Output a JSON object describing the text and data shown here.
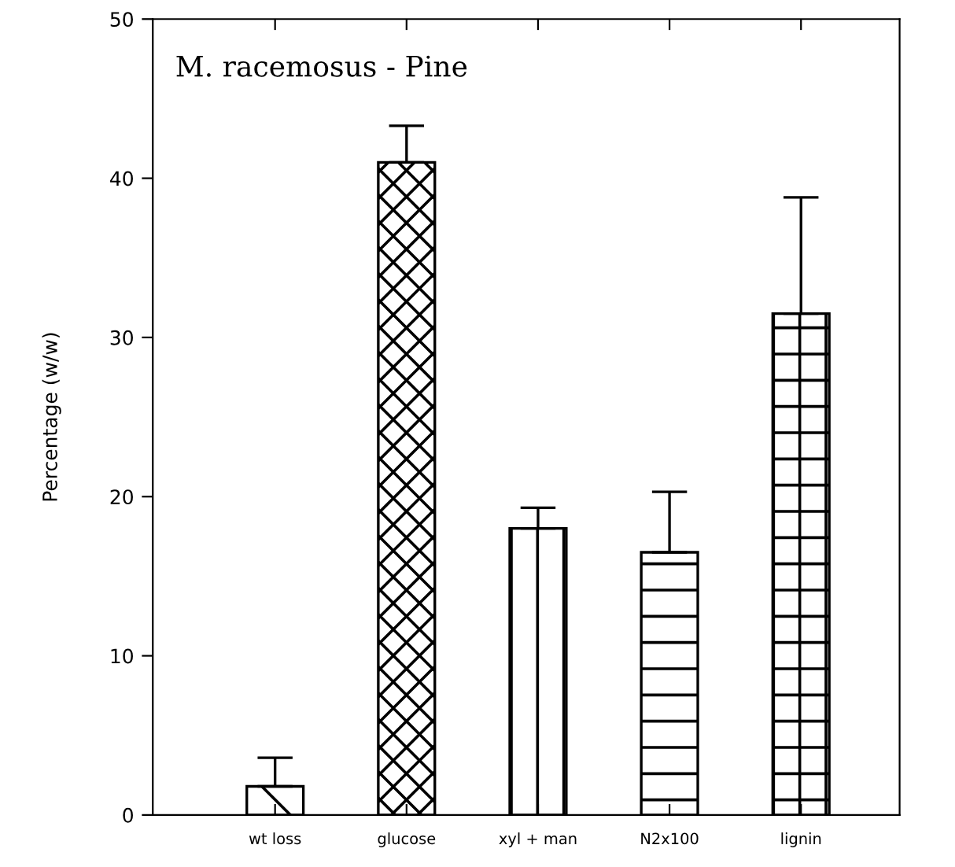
{
  "chart_data": {
    "type": "bar",
    "title": "M. racemosus - Pine",
    "ylabel": "Percentage (w/w)",
    "categories": [
      "wt loss",
      "glucose",
      "xyl + man",
      "N2x100",
      "lignin"
    ],
    "values": [
      1.8,
      41,
      18,
      16.5,
      31.5
    ],
    "errors": [
      [
        1.8,
        3.6
      ],
      [
        41,
        43.3
      ],
      [
        18,
        19.3
      ],
      [
        16.5,
        20.3
      ],
      [
        31.5,
        38.8
      ]
    ],
    "color": "#000000",
    "ylim": [
      0,
      50
    ],
    "yticks": [
      0,
      10,
      20,
      30,
      40,
      50
    ],
    "grid": false,
    "legend": false
  }
}
